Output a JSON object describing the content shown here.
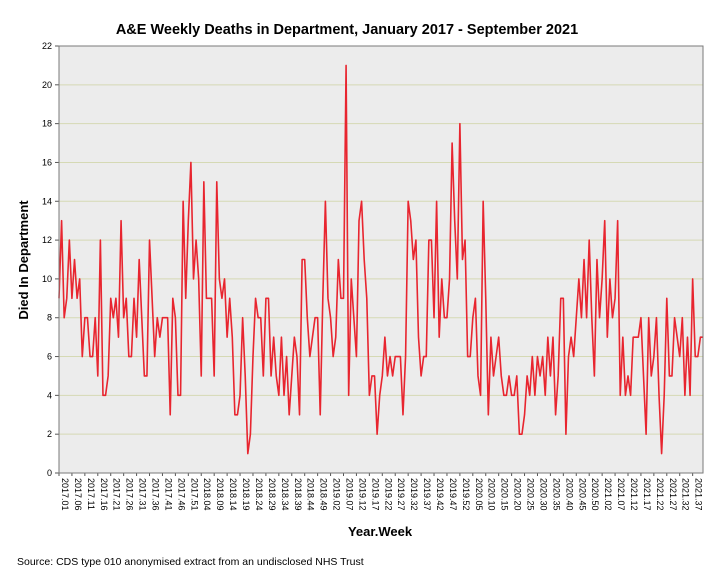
{
  "chart_data": {
    "type": "line",
    "title": "A&E Weekly Deaths in Department, January 2017 - September 2021",
    "xlabel": "Year.Week",
    "ylabel": "Died In Department",
    "ylim": [
      0,
      22
    ],
    "yticks": [
      0,
      2,
      4,
      6,
      8,
      10,
      12,
      14,
      16,
      18,
      20,
      22
    ],
    "grid": true,
    "source": "Source: CDS type 010 anonymised extract from an undisclosed NHS Trust",
    "xtick_labels": [
      "2017.01",
      "2017.06",
      "2017.11",
      "2017.16",
      "2017.21",
      "2017.26",
      "2017.31",
      "2017.36",
      "2017.41",
      "2017.46",
      "2017.51",
      "2018.04",
      "2018.09",
      "2018.14",
      "2018.19",
      "2018.24",
      "2018.29",
      "2018.34",
      "2018.39",
      "2018.44",
      "2018.49",
      "2019.02",
      "2019.07",
      "2019.12",
      "2019.17",
      "2019.22",
      "2019.27",
      "2019.32",
      "2019.37",
      "2019.42",
      "2019.47",
      "2019.52",
      "2020.05",
      "2020.10",
      "2020.15",
      "2020.20",
      "2020.25",
      "2020.30",
      "2020.35",
      "2020.40",
      "2020.45",
      "2020.50",
      "2021.02",
      "2021.07",
      "2021.12",
      "2021.17",
      "2021.22",
      "2021.27",
      "2021.32",
      "2021.37"
    ],
    "series": [
      {
        "name": "Died In Department",
        "color": "#e8252f",
        "values": [
          9,
          13,
          8,
          9,
          12,
          9,
          11,
          9,
          10,
          6,
          8,
          8,
          6,
          6,
          8,
          5,
          12,
          4,
          4,
          5,
          9,
          8,
          9,
          7,
          13,
          8,
          9,
          6,
          6,
          9,
          7,
          11,
          8,
          5,
          5,
          12,
          9,
          6,
          8,
          7,
          8,
          8,
          8,
          3,
          9,
          8,
          4,
          4,
          14,
          9,
          13,
          16,
          10,
          12,
          10,
          5,
          15,
          9,
          9,
          9,
          5,
          15,
          10,
          9,
          10,
          7,
          9,
          7,
          3,
          3,
          4,
          8,
          5,
          1,
          2,
          6,
          9,
          8,
          8,
          5,
          9,
          9,
          5,
          7,
          5,
          4,
          7,
          4,
          6,
          3,
          5,
          7,
          6,
          3,
          11,
          11,
          8,
          6,
          7,
          8,
          8,
          3,
          9,
          14,
          9,
          8,
          6,
          7,
          11,
          9,
          9,
          21,
          4,
          10,
          8,
          6,
          13,
          14,
          11,
          9,
          4,
          5,
          5,
          2,
          4,
          5,
          7,
          5,
          6,
          5,
          6,
          6,
          6,
          3,
          6,
          14,
          13,
          11,
          12,
          7,
          5,
          6,
          6,
          12,
          12,
          8,
          14,
          7,
          10,
          8,
          8,
          10,
          17,
          13,
          10,
          18,
          11,
          12,
          6,
          6,
          8,
          9,
          5,
          4,
          14,
          9,
          3,
          7,
          5,
          6,
          7,
          5,
          4,
          4,
          5,
          4,
          4,
          5,
          2,
          2,
          3,
          5,
          4,
          6,
          4,
          6,
          5,
          6,
          4,
          7,
          5,
          7,
          3,
          5,
          9,
          9,
          2,
          6,
          7,
          6,
          8,
          10,
          8,
          11,
          8,
          12,
          8,
          5,
          11,
          8,
          10,
          13,
          7,
          10,
          8,
          9,
          13,
          4,
          7,
          4,
          5,
          4,
          7,
          7,
          7,
          8,
          5,
          2,
          8,
          5,
          6,
          8,
          4,
          1,
          4,
          9,
          5,
          5,
          8,
          7,
          6,
          8,
          4,
          7,
          4,
          10,
          6,
          6,
          7,
          7
        ]
      }
    ]
  }
}
